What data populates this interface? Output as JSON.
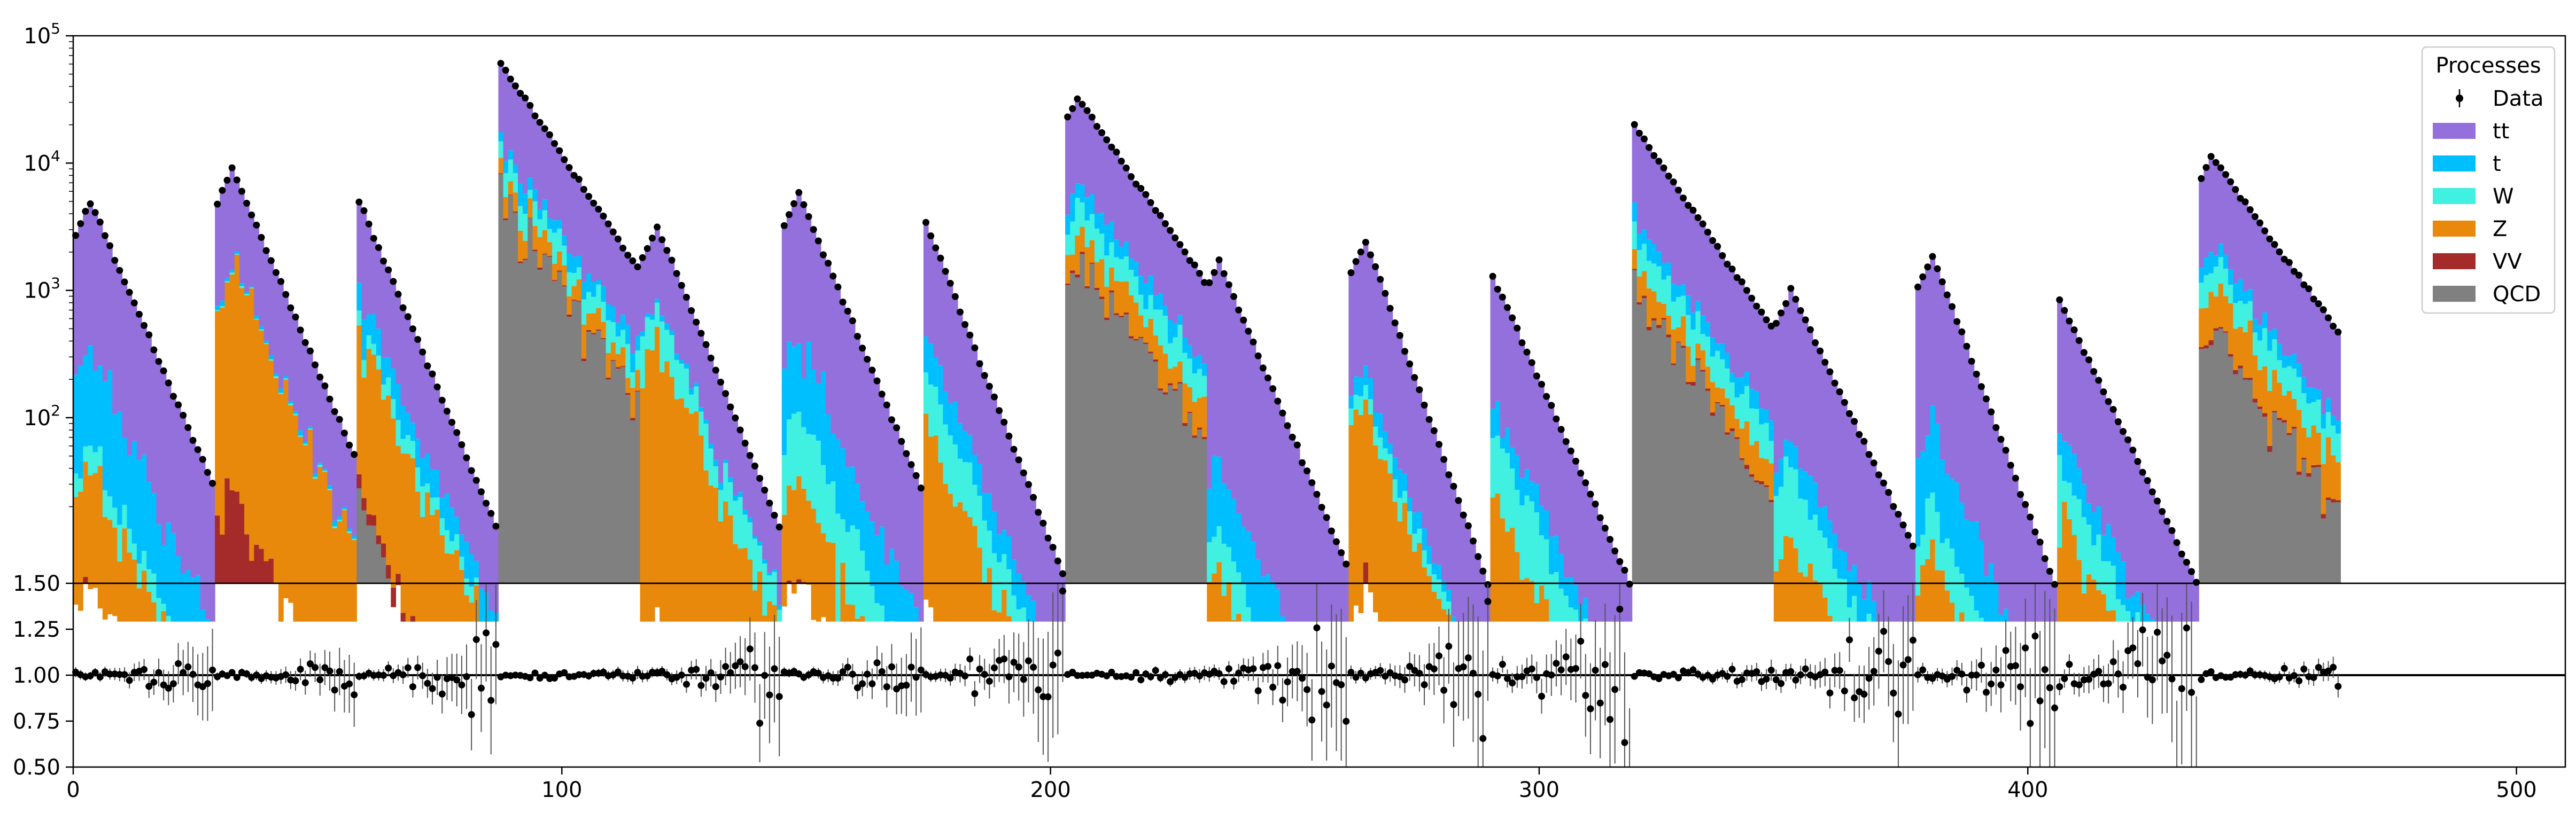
{
  "chart_data": {
    "type": "bar",
    "title": "",
    "xlabel": "",
    "ylabel": "",
    "legend": {
      "title": "Processes",
      "placement": "top-right",
      "entries": [
        {
          "label": "Data",
          "kind": "errorbar"
        },
        {
          "label": "tt",
          "kind": "patch"
        },
        {
          "label": "t",
          "kind": "patch"
        },
        {
          "label": "W",
          "kind": "patch"
        },
        {
          "label": "Z",
          "kind": "patch"
        },
        {
          "label": "VV",
          "kind": "patch"
        },
        {
          "label": "QCD",
          "kind": "patch"
        }
      ]
    },
    "colors": {
      "tt": "#9370DB",
      "t": "#00BFFF",
      "W": "#40F0E0",
      "Z": "#E8890C",
      "VV": "#A52A2A",
      "QCD": "#808080",
      "Data": "#000000"
    },
    "main_panel": {
      "yscale": "log",
      "xlim": [
        0,
        510
      ],
      "ylim": [
        5,
        100000
      ],
      "yticks": [
        100,
        1000,
        10000,
        100000
      ],
      "ytick_labels": [
        "10^2",
        "10^3",
        "10^4",
        "10^5"
      ],
      "grid": false,
      "stack_order": [
        "QCD",
        "VV",
        "Z",
        "W",
        "t",
        "tt"
      ],
      "segments": [
        {
          "x": [
            0,
            29
          ],
          "data_peak": 5000,
          "peak_at": 3,
          "data_end": 30,
          "frac": {
            "QCD": 0.0,
            "VV": 0.001,
            "Z": 0.008,
            "W": 0.004,
            "t": 0.06
          }
        },
        {
          "x": [
            29,
            58
          ],
          "data_peak": 9000,
          "peak_at": 3,
          "data_end": 50,
          "frac": {
            "QCD": 0.0,
            "VV": 0.003,
            "Z": 0.18,
            "W": 0.004,
            "t": 0.01
          }
        },
        {
          "x": [
            58,
            87
          ],
          "data_peak": 5000,
          "peak_at": 0,
          "data_end": 14,
          "frac": {
            "QCD": 0.004,
            "VV": 0.001,
            "Z": 0.08,
            "W": 0.03,
            "t": 0.07
          }
        },
        {
          "x": [
            87,
            116
          ],
          "data_peak": 60000,
          "peak_at": 0,
          "data_end": 1500,
          "frac": {
            "QCD": 0.1,
            "VV": 0.002,
            "Z": 0.04,
            "W": 0.06,
            "t": 0.05
          }
        },
        {
          "x": [
            116,
            145
          ],
          "data_peak": 3200,
          "peak_at": 3,
          "data_end": 14,
          "frac": {
            "QCD": 0.0,
            "VV": 0.001,
            "Z": 0.12,
            "W": 0.12,
            "t": 0.02
          }
        },
        {
          "x": [
            145,
            174
          ],
          "data_peak": 5800,
          "peak_at": 3,
          "data_end": 28,
          "frac": {
            "QCD": 0.0,
            "VV": 0.001,
            "Z": 0.005,
            "W": 0.015,
            "t": 0.06
          }
        },
        {
          "x": [
            174,
            203
          ],
          "data_peak": 3400,
          "peak_at": 0,
          "data_end": 6,
          "frac": {
            "QCD": 0.0,
            "VV": 0.001,
            "Z": 0.03,
            "W": 0.04,
            "t": 0.06
          }
        },
        {
          "x": [
            203,
            232
          ],
          "data_peak": 33000,
          "peak_at": 2,
          "data_end": 1200,
          "frac": {
            "QCD": 0.06,
            "VV": 0.002,
            "Z": 0.04,
            "W": 0.06,
            "t": 0.06
          }
        },
        {
          "x": [
            232,
            261
          ],
          "data_peak": 1700,
          "peak_at": 2,
          "data_end": 7,
          "frac": {
            "QCD": 0.0,
            "VV": 0.001,
            "Z": 0.003,
            "W": 0.004,
            "t": 0.02
          }
        },
        {
          "x": [
            261,
            290
          ],
          "data_peak": 2500,
          "peak_at": 3,
          "data_end": 5,
          "frac": {
            "QCD": 0.0,
            "VV": 0.002,
            "Z": 0.05,
            "W": 0.02,
            "t": 0.03
          }
        },
        {
          "x": [
            290,
            319
          ],
          "data_peak": 1300,
          "peak_at": 0,
          "data_end": 5,
          "frac": {
            "QCD": 0.0,
            "VV": 0.001,
            "Z": 0.02,
            "W": 0.04,
            "t": 0.04
          }
        },
        {
          "x": [
            319,
            348
          ],
          "data_peak": 20000,
          "peak_at": 0,
          "data_end": 520,
          "frac": {
            "QCD": 0.05,
            "VV": 0.002,
            "Z": 0.03,
            "W": 0.06,
            "t": 0.05
          }
        },
        {
          "x": [
            348,
            377
          ],
          "data_peak": 1000,
          "peak_at": 3,
          "data_end": 10,
          "frac": {
            "QCD": 0.0,
            "VV": 0.001,
            "Z": 0.01,
            "W": 0.03,
            "t": 0.03
          }
        },
        {
          "x": [
            377,
            406
          ],
          "data_peak": 1900,
          "peak_at": 3,
          "data_end": 5,
          "frac": {
            "QCD": 0.0,
            "VV": 0.001,
            "Z": 0.004,
            "W": 0.008,
            "t": 0.04
          }
        },
        {
          "x": [
            406,
            435
          ],
          "data_peak": 850,
          "peak_at": 0,
          "data_end": 5,
          "frac": {
            "QCD": 0.0,
            "VV": 0.001,
            "Z": 0.02,
            "W": 0.03,
            "t": 0.04
          }
        },
        {
          "x": [
            435,
            464
          ],
          "data_peak": 11500,
          "peak_at": 2,
          "data_end": 470,
          "frac": {
            "QCD": 0.04,
            "VV": 0.002,
            "Z": 0.05,
            "W": 0.06,
            "t": 0.05
          }
        }
      ]
    },
    "ratio_panel": {
      "xlim": [
        0,
        510
      ],
      "ylim": [
        0.5,
        1.5
      ],
      "yticks": [
        0.5,
        0.75,
        1.0,
        1.25,
        1.5
      ],
      "ytick_labels": [
        "0.50",
        "0.75",
        "1.00",
        "1.25",
        "1.50"
      ],
      "xticks": [
        0,
        100,
        200,
        300,
        400,
        500
      ],
      "xtick_labels": [
        "0",
        "100",
        "200",
        "300",
        "400",
        "500"
      ],
      "reference_line": 1.0
    }
  }
}
